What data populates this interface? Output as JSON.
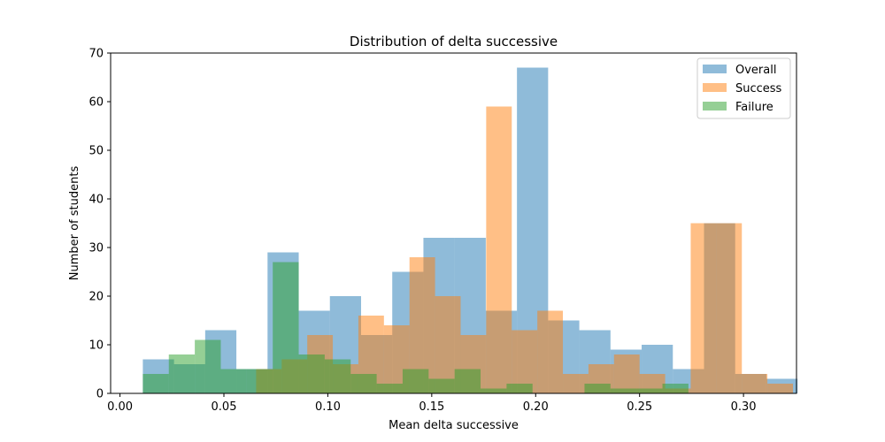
{
  "chart_data": {
    "type": "bar",
    "title": "Distribution of delta successive",
    "xlabel": "Mean delta successive",
    "ylabel": "Number of students",
    "xlim": [
      -0.0045,
      0.3255
    ],
    "ylim": [
      0,
      70
    ],
    "xticks": [
      0.0,
      0.05,
      0.1,
      0.15,
      0.2,
      0.25,
      0.3
    ],
    "xtick_labels": [
      "0.00",
      "0.05",
      "0.10",
      "0.15",
      "0.20",
      "0.25",
      "0.30"
    ],
    "yticks": [
      0,
      10,
      20,
      30,
      40,
      50,
      60,
      70
    ],
    "ytick_labels": [
      "0",
      "10",
      "20",
      "30",
      "40",
      "50",
      "60",
      "70"
    ],
    "legend_position": "top-right",
    "series": [
      {
        "name": "Overall",
        "color": "#1f77b4",
        "opacity": 0.5,
        "bin_start": 0.011,
        "bin_width": 0.015,
        "values": [
          7,
          6,
          13,
          5,
          29,
          17,
          20,
          12,
          25,
          32,
          32,
          17,
          67,
          15,
          13,
          9,
          10,
          5,
          35,
          4,
          3
        ]
      },
      {
        "name": "Success",
        "color": "#ff7f0e",
        "opacity": 0.5,
        "bin_start": 0.0655,
        "bin_width": 0.0123,
        "values": [
          5,
          7,
          12,
          6,
          16,
          14,
          28,
          20,
          12,
          59,
          13,
          17,
          4,
          6,
          8,
          4,
          1,
          35,
          35,
          4,
          2
        ]
      },
      {
        "name": "Failure",
        "color": "#2ca02c",
        "opacity": 0.5,
        "bin_start": 0.011,
        "bin_width": 0.0125,
        "values": [
          4,
          8,
          11,
          5,
          5,
          27,
          8,
          7,
          4,
          2,
          5,
          3,
          5,
          1,
          2,
          0,
          0,
          2,
          1,
          1,
          2
        ]
      }
    ]
  }
}
